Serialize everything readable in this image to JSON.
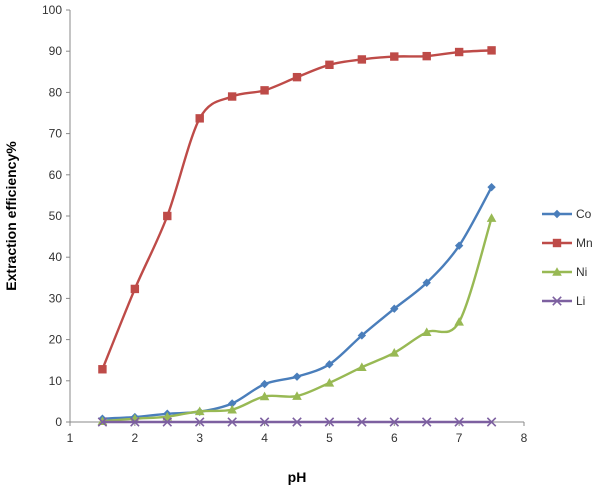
{
  "chart_data": {
    "type": "line",
    "title": "",
    "xlabel": "pH",
    "ylabel": "Extraction efficiency%",
    "xlim": [
      1,
      8
    ],
    "ylim": [
      0,
      100
    ],
    "x_ticks": [
      "1",
      "2",
      "3",
      "4",
      "5",
      "6",
      "7",
      "8"
    ],
    "y_ticks": [
      "0",
      "10",
      "20",
      "30",
      "40",
      "50",
      "60",
      "70",
      "80",
      "90",
      "100"
    ],
    "x": [
      1.5,
      2,
      2.5,
      3,
      3.5,
      4,
      4.5,
      5,
      5.5,
      6,
      6.5,
      7,
      7.5
    ],
    "legend_position": "right",
    "series": [
      {
        "name": "Co",
        "color": "#4a7ebb",
        "marker": "diamond",
        "values": [
          0.8,
          1.2,
          2.0,
          2.5,
          4.5,
          9.2,
          11.0,
          14.0,
          21.0,
          27.5,
          33.8,
          42.8,
          57.0
        ]
      },
      {
        "name": "Mn",
        "color": "#be4b48",
        "marker": "square",
        "values": [
          12.8,
          32.3,
          50.0,
          73.7,
          79.0,
          80.5,
          83.7,
          86.7,
          88.0,
          88.7,
          88.8,
          89.8,
          90.2
        ]
      },
      {
        "name": "Ni",
        "color": "#98b954",
        "marker": "triangle",
        "values": [
          0.2,
          0.8,
          1.3,
          2.6,
          3.0,
          6.2,
          6.3,
          9.5,
          13.3,
          16.8,
          21.8,
          24.3,
          49.5
        ]
      },
      {
        "name": "Li",
        "color": "#7d60a0",
        "marker": "x",
        "values": [
          0,
          0,
          0,
          0,
          0,
          0,
          0,
          0,
          0,
          0,
          0,
          0,
          0
        ]
      }
    ]
  }
}
